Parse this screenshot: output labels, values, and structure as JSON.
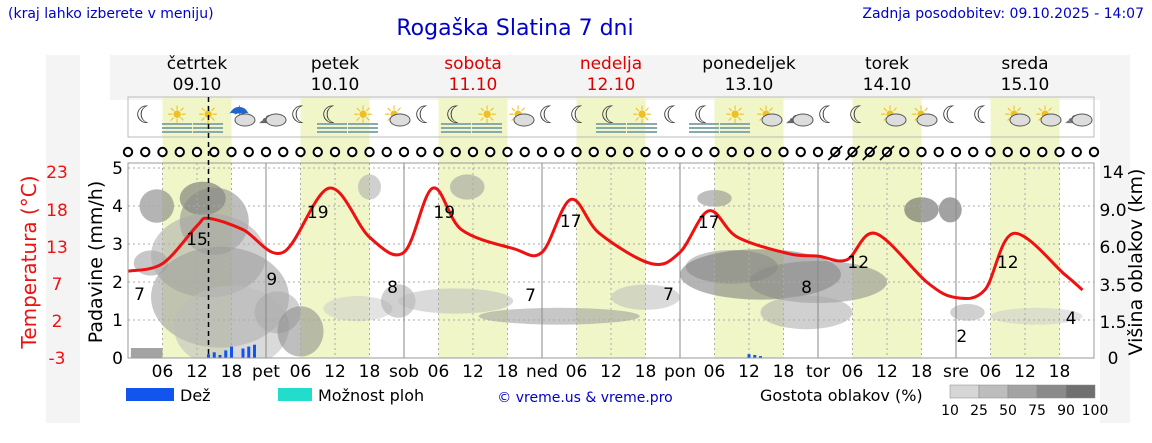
{
  "header": {
    "region_hint": "(kraj lahko izberete v meniju)",
    "title": "Rogaška Slatina 7 dni",
    "updated": "Zadnja posodobitev: 09.10.2025 - 14:07"
  },
  "colors": {
    "temperature_line": "#ee1111",
    "rain_bar": "#1155ee",
    "storm_chance": "#22ddcc",
    "weekend_day": "#dd0000",
    "day_band": "#f0f6c8",
    "link": "#0000cc"
  },
  "days": [
    {
      "name": "četrtek",
      "date": "09.10",
      "weekend": false
    },
    {
      "name": "petek",
      "date": "10.10",
      "weekend": false
    },
    {
      "name": "sobota",
      "date": "11.10",
      "weekend": true
    },
    {
      "name": "nedelja",
      "date": "12.10",
      "weekend": true
    },
    {
      "name": "ponedeljek",
      "date": "13.10",
      "weekend": false
    },
    {
      "name": "torek",
      "date": "14.10",
      "weekend": false
    },
    {
      "name": "sreda",
      "date": "15.10",
      "weekend": false
    }
  ],
  "weather_icons": [
    "moon-cloud-icon",
    "sun-fog-icon",
    "sun-fog-icon",
    "cloud-rain-icon",
    "cloud-drizzle-icon",
    "moon-cloud-icon",
    "moon-fog-icon",
    "sun-fog-icon",
    "sun-cloud-icon",
    "moon-cloud-icon",
    "moon-fog-icon",
    "sun-fog-icon",
    "sun-cloud-icon",
    "moon-cloud-icon",
    "moon-cloud-icon",
    "moon-fog-icon",
    "sun-fog-icon",
    "moon-cloud-icon",
    "moon-fog-icon",
    "sun-fog-icon",
    "sun-cloud-icon",
    "cloud-drizzle-icon",
    "moon-cloud-icon",
    "moon-cloud-icon",
    "sun-cloud-icon",
    "sun-cloud-icon",
    "moon-cloud-icon",
    "moon-cloud-icon",
    "sun-cloud-icon",
    "sun-cloud-icon",
    "cloud-icon"
  ],
  "chart_data": {
    "type": "line",
    "x_tick_labels": [
      "06",
      "12",
      "18",
      "pet",
      "06",
      "12",
      "18",
      "sob",
      "06",
      "12",
      "18",
      "ned",
      "06",
      "12",
      "18",
      "pon",
      "06",
      "12",
      "18",
      "tor",
      "06",
      "12",
      "18",
      "sre",
      "06",
      "12",
      "18"
    ],
    "left_axis_rain": {
      "label": "Padavine (mm/h)",
      "ticks": [
        0,
        1,
        2,
        3,
        4,
        5
      ],
      "range": [
        0,
        5.5
      ]
    },
    "left_axis_temp": {
      "label": "Temperatura (°C)",
      "ticks": [
        -3,
        2,
        7,
        13,
        18,
        23
      ]
    },
    "right_axis": {
      "label": "Višina oblakov (km)",
      "ticks": [
        "0",
        "1.5",
        "3.5",
        "6.0",
        "9.0",
        "14"
      ]
    },
    "temperature": {
      "name": "Temperatura",
      "hours": [
        0,
        6,
        12,
        14,
        20,
        27,
        35,
        42,
        48,
        53,
        58,
        67,
        72,
        77,
        82,
        91,
        96,
        101,
        106,
        115,
        120,
        125,
        130,
        139,
        144,
        149,
        154,
        163,
        166
      ],
      "values": [
        8.5,
        9.5,
        14.5,
        15.5,
        14,
        11,
        19.5,
        13,
        11,
        19.5,
        14,
        11.5,
        11,
        18,
        13.5,
        9.5,
        11,
        16.5,
        13,
        10.8,
        10.5,
        10,
        13.5,
        7,
        5,
        6,
        13.5,
        8,
        6
      ]
    },
    "temperature_labels": [
      {
        "h": 2,
        "text": "7"
      },
      {
        "h": 12,
        "text": "15"
      },
      {
        "h": 25,
        "text": "9"
      },
      {
        "h": 33,
        "text": "19"
      },
      {
        "h": 46,
        "text": "8"
      },
      {
        "h": 55,
        "text": "19"
      },
      {
        "h": 70,
        "text": "7"
      },
      {
        "h": 77,
        "text": "17"
      },
      {
        "h": 94,
        "text": "7"
      },
      {
        "h": 101,
        "text": "17"
      },
      {
        "h": 118,
        "text": "8"
      },
      {
        "h": 127,
        "text": "12"
      },
      {
        "h": 145,
        "text": "2"
      },
      {
        "h": 153,
        "text": "12"
      },
      {
        "h": 164,
        "text": "4"
      }
    ],
    "rain": {
      "name": "Dež",
      "hours": [
        14,
        15,
        16,
        17,
        18,
        20,
        21,
        22,
        108,
        109,
        110
      ],
      "values": [
        0.1,
        0.15,
        0.08,
        0.2,
        0.3,
        0.25,
        0.3,
        0.35,
        0.1,
        0.08,
        0.05
      ]
    },
    "storm_chance": {
      "name": "Možnost ploh",
      "hours": [],
      "values": []
    },
    "cloud_density_legend": {
      "title": "Gostota oblakov (%)",
      "levels": [
        "10",
        "25",
        "50",
        "75",
        "90",
        "100"
      ]
    },
    "current_time_hour": 14
  },
  "legend": {
    "rain": "Dež",
    "storm": "Možnost ploh"
  },
  "credit": "© vreme.us & vreme.pro"
}
